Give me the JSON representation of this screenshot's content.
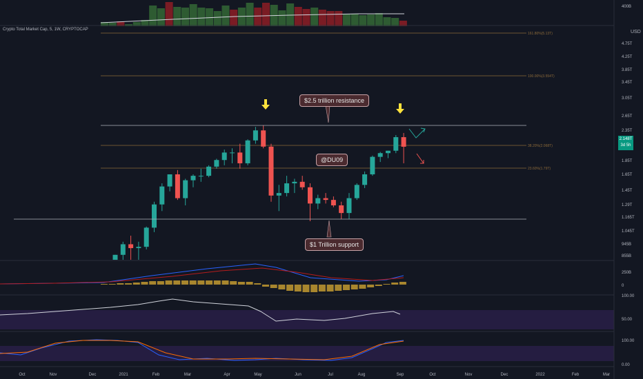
{
  "header": {
    "symbol_title": "Crypto Total Market Cap, 5, 1W, CRYPTOCAP",
    "currency": "USD",
    "current_price": "2.148T",
    "countdown": "3d 5h"
  },
  "price_axis": {
    "labels": [
      "4.75T",
      "4.25T",
      "3.85T",
      "3.45T",
      "3.05T",
      "2.65T",
      "2.35T",
      "1.85T",
      "1.65T",
      "1.45T",
      "1.29T",
      "1.165T",
      "1.045T",
      "945B",
      "855B"
    ]
  },
  "volume_axis": {
    "label": "400B"
  },
  "macd_axis": {
    "labels": [
      "250B",
      "0"
    ]
  },
  "rsi_axis": {
    "labels": [
      "100.00",
      "50.00"
    ]
  },
  "stoch_axis": {
    "labels": [
      "100.00",
      "0.00"
    ]
  },
  "time_axis": {
    "labels": [
      "Oct",
      "Nov",
      "Dec",
      "2021",
      "Feb",
      "Mar",
      "Apr",
      "May",
      "Jun",
      "Jul",
      "Aug",
      "Sep",
      "Oct",
      "Nov",
      "Dec",
      "2022",
      "Feb",
      "Mar"
    ]
  },
  "fib_levels": [
    {
      "label": "161.80%(5.13T)"
    },
    {
      "label": "100.00%(3.554T)"
    },
    {
      "label": "38.20%(2.068T)"
    },
    {
      "label": "23.60%(1.79T)"
    }
  ],
  "annotations": {
    "resistance": "$2.5 trillion resistance",
    "support": "$1 Trillion support",
    "author": "@DU09"
  },
  "icons": {
    "left_arrow": "yellow-down-arrow-icon",
    "right_arrow": "yellow-down-arrow-icon",
    "up_check": "green-check-arrow-icon",
    "down_arrow": "red-down-arrow-icon"
  },
  "colors": {
    "background": "#131722",
    "bull": "#26a69a",
    "bear": "#ef5350",
    "volume_bull": "#2e5b32",
    "volume_bear": "#7a1c24",
    "fib": "#8c6a3a",
    "arrow": "#ffe23c",
    "rsi_band": "#2a1f4a",
    "macd_hist": "#a8862e"
  },
  "chart_data": {
    "type": "candlestick",
    "title": "Crypto Total Market Cap, 5, 1W, CRYPTOCAP",
    "candles": [
      {
        "o": 0.86,
        "h": 0.9,
        "l": 0.84,
        "c": 0.9
      },
      {
        "o": 0.9,
        "h": 1.0,
        "l": 0.85,
        "c": 0.98
      },
      {
        "o": 0.98,
        "h": 1.05,
        "l": 0.84,
        "c": 0.95
      },
      {
        "o": 0.95,
        "h": 1.0,
        "l": 0.84,
        "c": 0.96
      },
      {
        "o": 0.96,
        "h": 1.13,
        "l": 0.94,
        "c": 1.12
      },
      {
        "o": 1.12,
        "h": 1.38,
        "l": 1.08,
        "c": 1.35
      },
      {
        "o": 1.35,
        "h": 1.6,
        "l": 1.28,
        "c": 1.56
      },
      {
        "o": 1.56,
        "h": 1.72,
        "l": 1.5,
        "c": 1.72
      },
      {
        "o": 1.72,
        "h": 1.78,
        "l": 1.4,
        "c": 1.42
      },
      {
        "o": 1.42,
        "h": 1.66,
        "l": 1.34,
        "c": 1.64
      },
      {
        "o": 1.64,
        "h": 1.72,
        "l": 1.55,
        "c": 1.7
      },
      {
        "o": 1.7,
        "h": 1.8,
        "l": 1.62,
        "c": 1.7
      },
      {
        "o": 1.7,
        "h": 1.85,
        "l": 1.68,
        "c": 1.83
      },
      {
        "o": 1.83,
        "h": 1.95,
        "l": 1.8,
        "c": 1.93
      },
      {
        "o": 1.93,
        "h": 2.1,
        "l": 1.85,
        "c": 2.05
      },
      {
        "o": 2.05,
        "h": 2.12,
        "l": 1.88,
        "c": 2.05
      },
      {
        "o": 2.05,
        "h": 2.2,
        "l": 1.8,
        "c": 1.88
      },
      {
        "o": 1.88,
        "h": 2.28,
        "l": 1.85,
        "c": 2.26
      },
      {
        "o": 2.26,
        "h": 2.52,
        "l": 2.2,
        "c": 2.45
      },
      {
        "o": 2.45,
        "h": 2.55,
        "l": 2.12,
        "c": 2.15
      },
      {
        "o": 2.15,
        "h": 2.2,
        "l": 1.38,
        "c": 1.45
      },
      {
        "o": 1.45,
        "h": 1.58,
        "l": 1.28,
        "c": 1.48
      },
      {
        "o": 1.48,
        "h": 1.7,
        "l": 1.44,
        "c": 1.6
      },
      {
        "o": 1.6,
        "h": 1.66,
        "l": 1.48,
        "c": 1.62
      },
      {
        "o": 1.62,
        "h": 1.7,
        "l": 1.52,
        "c": 1.55
      },
      {
        "o": 1.55,
        "h": 1.6,
        "l": 1.18,
        "c": 1.36
      },
      {
        "o": 1.36,
        "h": 1.46,
        "l": 1.3,
        "c": 1.42
      },
      {
        "o": 1.42,
        "h": 1.48,
        "l": 1.36,
        "c": 1.4
      },
      {
        "o": 1.4,
        "h": 1.44,
        "l": 1.32,
        "c": 1.34
      },
      {
        "o": 1.34,
        "h": 1.38,
        "l": 1.2,
        "c": 1.26
      },
      {
        "o": 1.26,
        "h": 1.48,
        "l": 1.2,
        "c": 1.42
      },
      {
        "o": 1.42,
        "h": 1.6,
        "l": 1.4,
        "c": 1.58
      },
      {
        "o": 1.58,
        "h": 1.76,
        "l": 1.54,
        "c": 1.72
      },
      {
        "o": 1.72,
        "h": 2.0,
        "l": 1.7,
        "c": 1.98
      },
      {
        "o": 1.98,
        "h": 2.06,
        "l": 1.9,
        "c": 2.04
      },
      {
        "o": 2.04,
        "h": 2.08,
        "l": 1.96,
        "c": 2.08
      },
      {
        "o": 2.08,
        "h": 2.36,
        "l": 2.04,
        "c": 2.32
      },
      {
        "o": 2.32,
        "h": 2.4,
        "l": 1.88,
        "c": 2.148
      }
    ]
  }
}
